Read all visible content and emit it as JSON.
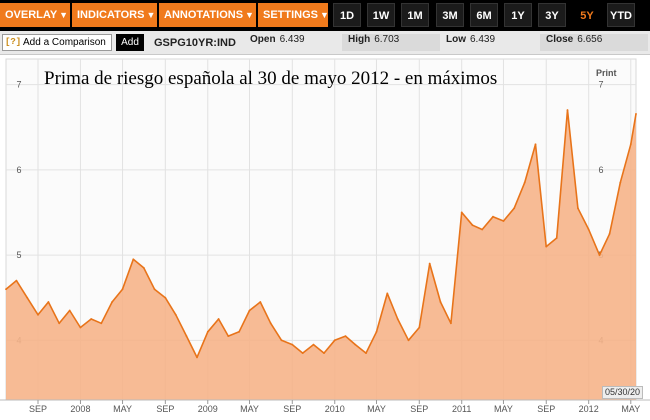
{
  "toolbar": {
    "menus": [
      {
        "label": "OVERLAY"
      },
      {
        "label": "INDICATORS"
      },
      {
        "label": "ANNOTATIONS"
      },
      {
        "label": "SETTINGS"
      }
    ],
    "ranges": [
      "1D",
      "1W",
      "1M",
      "3M",
      "6M",
      "1Y",
      "3Y",
      "5Y",
      "YTD"
    ],
    "active_range": "5Y"
  },
  "infobar": {
    "help_label": "[?]",
    "comparison_placeholder": "Add a Comparison",
    "add_label": "Add",
    "ticker": "GSPG10YR:IND",
    "open_label": "Open",
    "open_value": "6.439",
    "high_label": "High",
    "high_value": "6.703",
    "low_label": "Low",
    "low_value": "6.439",
    "close_label": "Close",
    "close_value": "6.656"
  },
  "chart_meta": {
    "print_label": "Print",
    "date_box": "05/30/20"
  },
  "colors": {
    "accent": "#f07a1c",
    "line": "#e8741a",
    "fill": "#f6b48a",
    "bg": "#000000"
  },
  "chart_data": {
    "type": "area",
    "title": "Prima de riesgo española al 30 de mayo 2012 - en máximos",
    "xlabel": "",
    "ylabel": "",
    "ylim": [
      3.3,
      7.3
    ],
    "x_range": [
      "2007-06",
      "2012-05-30"
    ],
    "y_ticks": [
      4,
      5,
      6,
      7
    ],
    "x_ticks": [
      {
        "label": "SEP",
        "x": "2007-09"
      },
      {
        "label": "2008",
        "x": "2008-01"
      },
      {
        "label": "MAY",
        "x": "2008-05"
      },
      {
        "label": "SEP",
        "x": "2008-09"
      },
      {
        "label": "2009",
        "x": "2009-01"
      },
      {
        "label": "MAY",
        "x": "2009-05"
      },
      {
        "label": "SEP",
        "x": "2009-09"
      },
      {
        "label": "2010",
        "x": "2010-01"
      },
      {
        "label": "MAY",
        "x": "2010-05"
      },
      {
        "label": "SEP",
        "x": "2010-09"
      },
      {
        "label": "2011",
        "x": "2011-01"
      },
      {
        "label": "MAY",
        "x": "2011-05"
      },
      {
        "label": "SEP",
        "x": "2011-09"
      },
      {
        "label": "2012",
        "x": "2012-01"
      },
      {
        "label": "MAY",
        "x": "2012-05"
      }
    ],
    "grid": true,
    "series": [
      {
        "x": [
          "2007-06",
          "2007-07",
          "2007-08",
          "2007-09",
          "2007-10",
          "2007-11",
          "2007-12",
          "2008-01",
          "2008-02",
          "2008-03",
          "2008-04",
          "2008-05",
          "2008-06",
          "2008-07",
          "2008-08",
          "2008-09",
          "2008-10",
          "2008-11",
          "2008-12",
          "2009-01",
          "2009-02",
          "2009-03",
          "2009-04",
          "2009-05",
          "2009-06",
          "2009-07",
          "2009-08",
          "2009-09",
          "2009-10",
          "2009-11",
          "2009-12",
          "2010-01",
          "2010-02",
          "2010-03",
          "2010-04",
          "2010-05",
          "2010-06",
          "2010-07",
          "2010-08",
          "2010-09",
          "2010-10",
          "2010-11",
          "2010-12",
          "2011-01",
          "2011-02",
          "2011-03",
          "2011-04",
          "2011-05",
          "2011-06",
          "2011-07",
          "2011-08",
          "2011-09",
          "2011-10",
          "2011-11",
          "2011-12",
          "2012-01",
          "2012-02",
          "2012-03",
          "2012-04",
          "2012-05",
          "2012-05-30"
        ],
        "values": [
          4.6,
          4.7,
          4.5,
          4.3,
          4.45,
          4.2,
          4.35,
          4.15,
          4.25,
          4.2,
          4.45,
          4.6,
          4.95,
          4.85,
          4.6,
          4.5,
          4.3,
          4.05,
          3.8,
          4.1,
          4.25,
          4.05,
          4.1,
          4.35,
          4.45,
          4.2,
          4.0,
          3.95,
          3.85,
          3.95,
          3.85,
          4.0,
          4.05,
          3.95,
          3.85,
          4.1,
          4.55,
          4.25,
          4.0,
          4.15,
          4.9,
          4.45,
          4.2,
          5.5,
          5.35,
          5.3,
          5.45,
          5.4,
          5.55,
          5.85,
          6.3,
          5.1,
          5.2,
          6.7,
          5.55,
          5.3,
          5.0,
          5.25,
          5.85,
          6.3,
          6.656
        ]
      }
    ]
  }
}
